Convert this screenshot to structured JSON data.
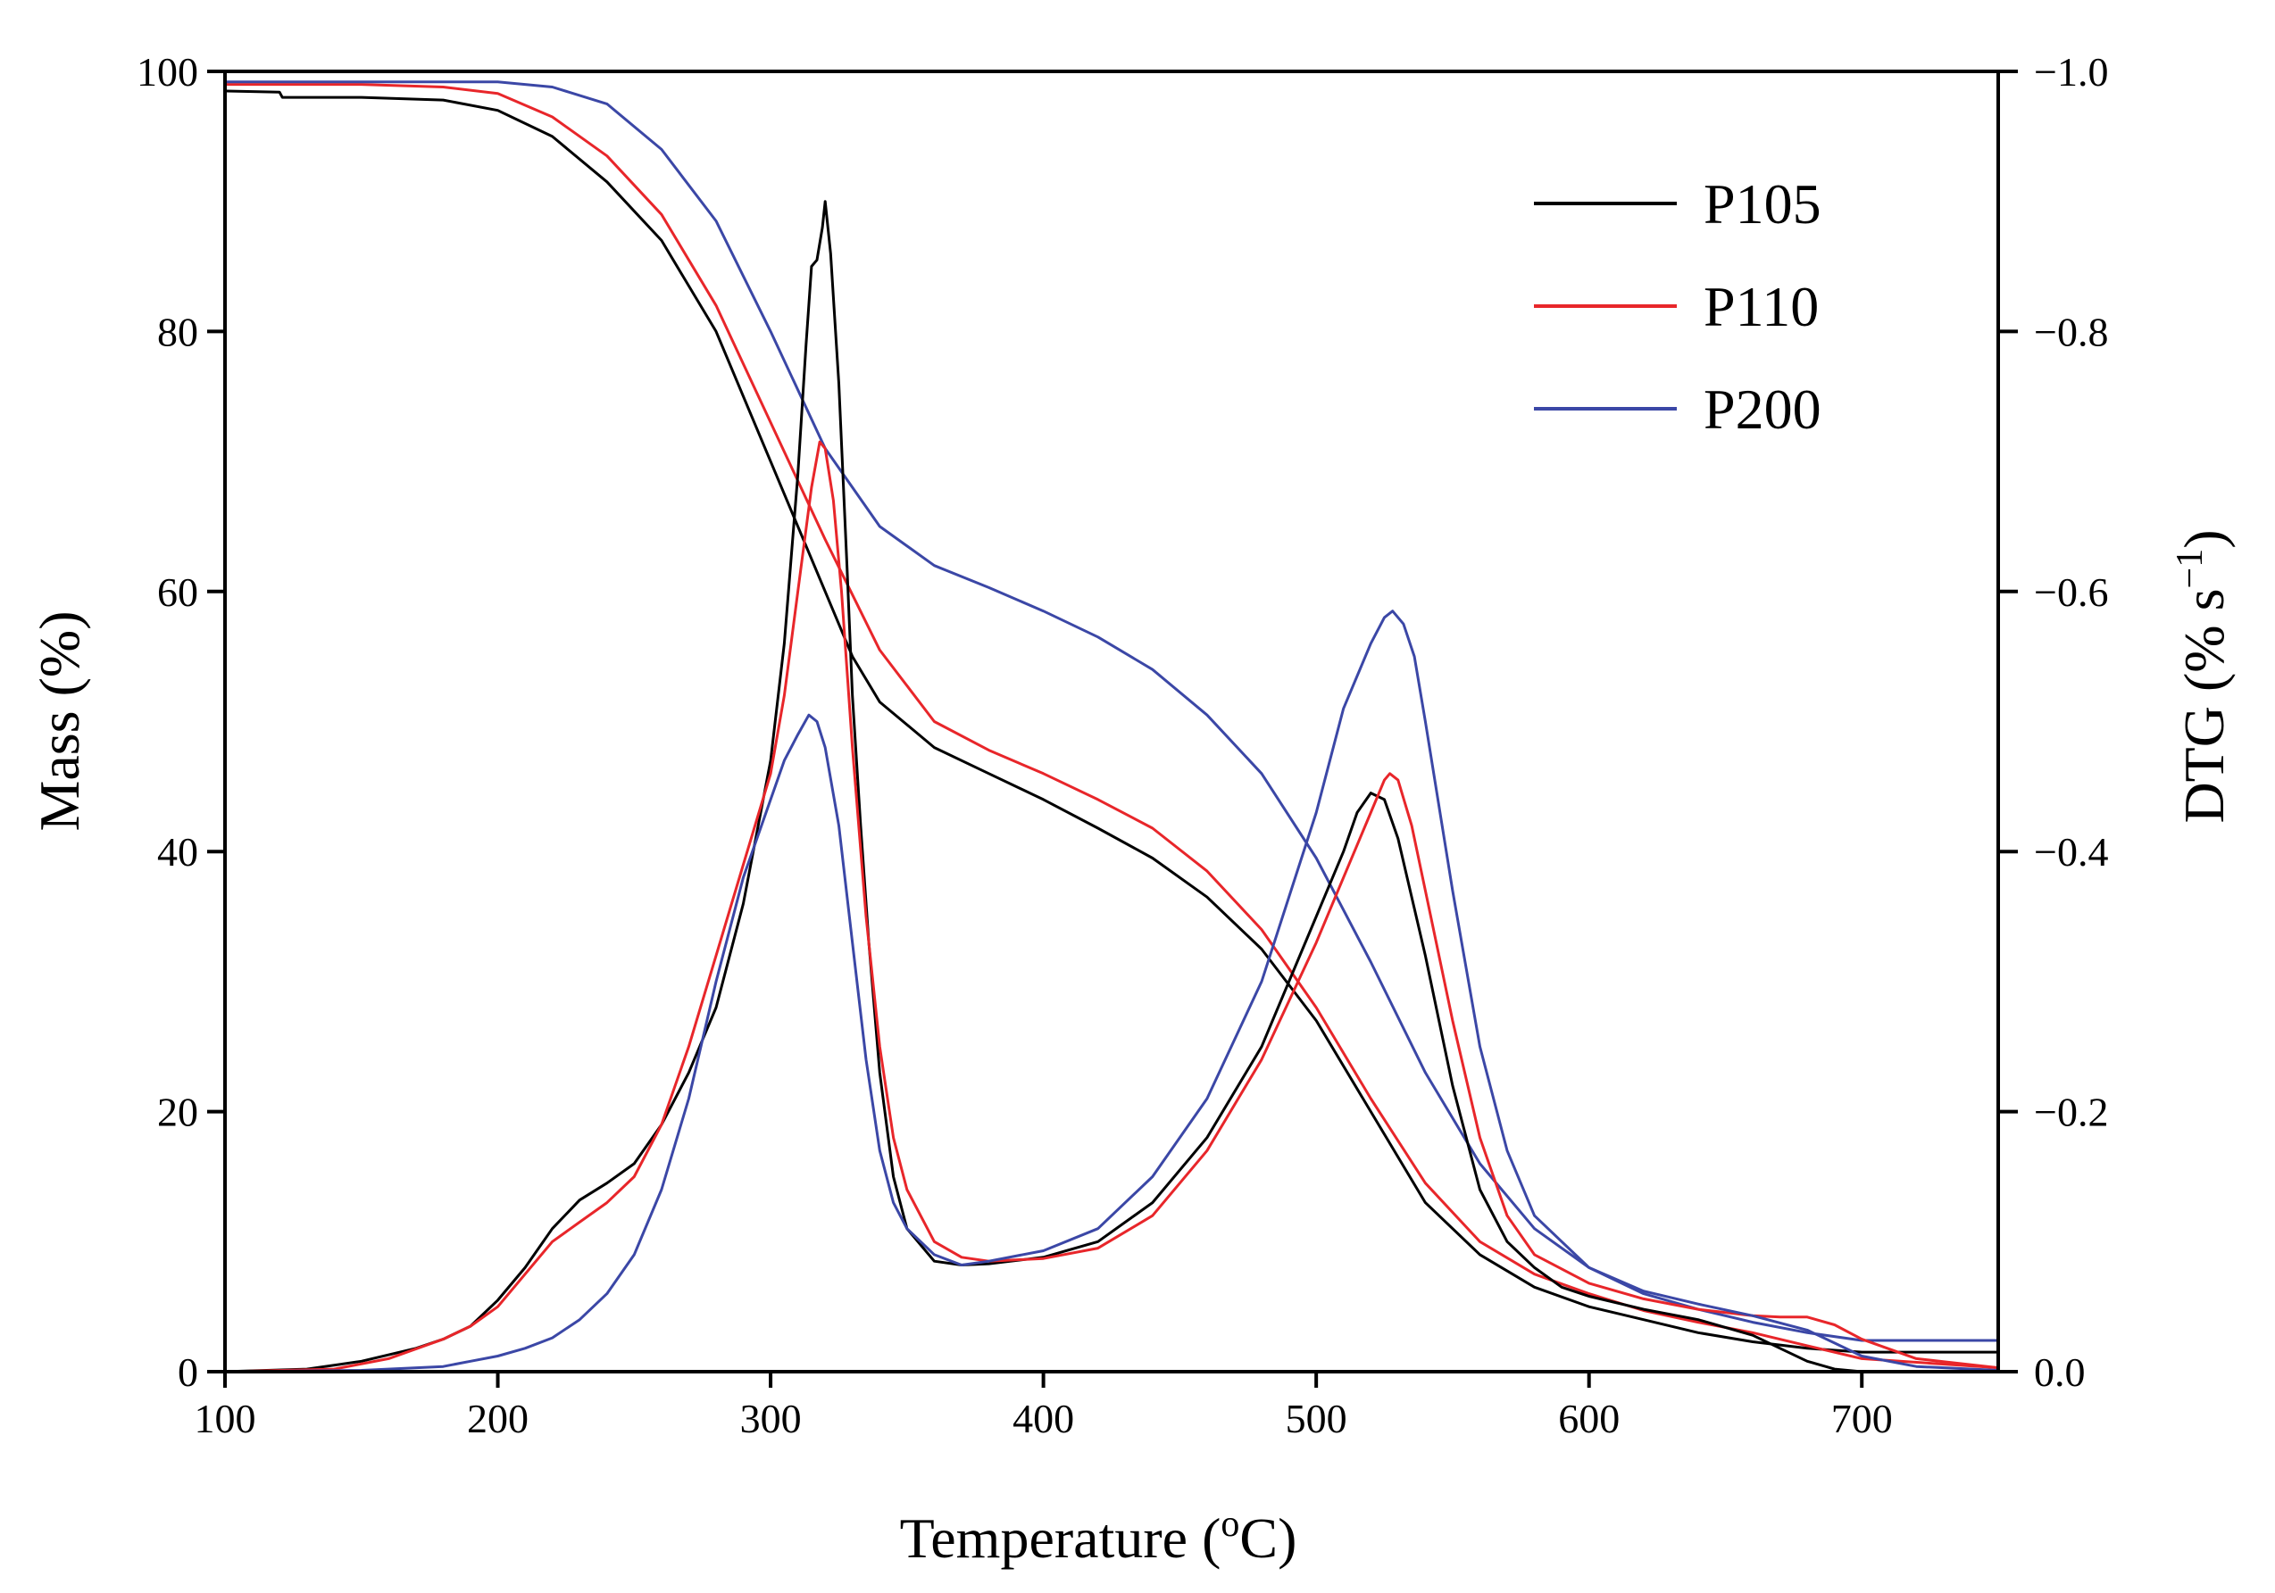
{
  "chart_data": {
    "type": "line",
    "title": "",
    "xlabel": "Temperature (",
    "xlabel_sup": "o",
    "xlabel_end": "C)",
    "ylabel": "Mass (%)",
    "y2label": "DTG (% s",
    "y2label_sup": "−1",
    "y2label_end": ")",
    "xlim": [
      100,
      750
    ],
    "ylim": [
      0,
      100
    ],
    "y2lim": [
      0.0,
      -1.0
    ],
    "xticks": [
      100,
      200,
      300,
      400,
      500,
      600,
      700
    ],
    "xtick_labels": [
      "100",
      "200",
      "300",
      "400",
      "500",
      "600",
      "700"
    ],
    "yticks": [
      0,
      20,
      40,
      60,
      80,
      100
    ],
    "ytick_labels": [
      "0",
      "20",
      "40",
      "60",
      "80",
      "100"
    ],
    "y2ticks": [
      0.0,
      -0.2,
      -0.4,
      -0.6,
      -0.8,
      -1.0
    ],
    "y2tick_labels": [
      "0.0",
      "−0.2",
      "−0.4",
      "−0.6",
      "−0.8",
      "−1.0"
    ],
    "legend_position": "top-right",
    "legend": [
      {
        "label": "P105",
        "color": "#000000"
      },
      {
        "label": "P110",
        "color": "#e8262a"
      },
      {
        "label": "P200",
        "color": "#3b47a6"
      }
    ],
    "series": [
      {
        "name": "P105",
        "kind": "mass",
        "axis": "left",
        "color": "#000000",
        "x": [
          100,
          120,
          121,
          150,
          180,
          200,
          220,
          240,
          260,
          280,
          300,
          320,
          330,
          340,
          360,
          380,
          400,
          420,
          440,
          460,
          480,
          500,
          520,
          540,
          560,
          580,
          600,
          620,
          640,
          660,
          680,
          700,
          750
        ],
        "y": [
          98.5,
          98.4,
          98.0,
          98.0,
          97.8,
          97.0,
          95.0,
          91.5,
          87.0,
          80.0,
          70.0,
          60.0,
          55.0,
          51.5,
          48.0,
          46.0,
          44.0,
          41.8,
          39.5,
          36.5,
          32.5,
          27.0,
          20.0,
          13.0,
          9.0,
          6.5,
          5.0,
          4.0,
          3.0,
          2.3,
          1.8,
          1.5,
          1.5
        ]
      },
      {
        "name": "P110",
        "kind": "mass",
        "axis": "left",
        "color": "#e8262a",
        "x": [
          100,
          150,
          180,
          200,
          220,
          240,
          260,
          280,
          300,
          320,
          340,
          360,
          380,
          400,
          420,
          440,
          460,
          480,
          500,
          520,
          540,
          560,
          580,
          600,
          620,
          640,
          660,
          680,
          700,
          750
        ],
        "y": [
          99.0,
          99.0,
          98.8,
          98.3,
          96.5,
          93.5,
          89.0,
          82.0,
          73.0,
          64.0,
          55.5,
          50.0,
          47.8,
          46.0,
          44.0,
          41.8,
          38.5,
          34.0,
          28.0,
          21.0,
          14.5,
          10.0,
          7.5,
          6.0,
          4.7,
          3.8,
          3.0,
          2.0,
          1.0,
          0.3
        ]
      },
      {
        "name": "P200",
        "kind": "mass",
        "axis": "left",
        "color": "#3b47a6",
        "x": [
          100,
          150,
          200,
          220,
          240,
          260,
          280,
          300,
          320,
          340,
          360,
          380,
          400,
          420,
          440,
          460,
          480,
          500,
          520,
          540,
          560,
          580,
          600,
          620,
          640,
          660,
          680,
          700,
          750
        ],
        "y": [
          99.2,
          99.2,
          99.2,
          98.8,
          97.5,
          94.0,
          88.5,
          80.0,
          71.0,
          65.0,
          62.0,
          60.3,
          58.5,
          56.5,
          54.0,
          50.5,
          46.0,
          39.5,
          31.5,
          23.0,
          16.0,
          11.0,
          8.0,
          6.0,
          4.8,
          3.8,
          3.0,
          2.4,
          2.4
        ]
      },
      {
        "name": "P105",
        "kind": "dtg",
        "axis": "right",
        "color": "#000000",
        "x": [
          100,
          130,
          150,
          170,
          180,
          190,
          200,
          210,
          220,
          230,
          240,
          250,
          260,
          270,
          280,
          290,
          300,
          305,
          310,
          313,
          315,
          317,
          319,
          320,
          322,
          325,
          328,
          330,
          333,
          336,
          340,
          345,
          350,
          360,
          370,
          380,
          400,
          420,
          440,
          460,
          480,
          500,
          510,
          515,
          520,
          525,
          530,
          540,
          550,
          560,
          570,
          580,
          590,
          600,
          620,
          640,
          660,
          670,
          680,
          690,
          700,
          750
        ],
        "y": [
          0.0,
          -0.002,
          -0.008,
          -0.018,
          -0.025,
          -0.035,
          -0.055,
          -0.08,
          -0.11,
          -0.132,
          -0.145,
          -0.16,
          -0.19,
          -0.23,
          -0.28,
          -0.36,
          -0.47,
          -0.56,
          -0.69,
          -0.79,
          -0.85,
          -0.855,
          -0.88,
          -0.9,
          -0.86,
          -0.76,
          -0.62,
          -0.52,
          -0.42,
          -0.33,
          -0.23,
          -0.15,
          -0.11,
          -0.085,
          -0.082,
          -0.083,
          -0.088,
          -0.1,
          -0.13,
          -0.18,
          -0.25,
          -0.35,
          -0.4,
          -0.43,
          -0.445,
          -0.44,
          -0.41,
          -0.32,
          -0.22,
          -0.14,
          -0.1,
          -0.08,
          -0.065,
          -0.058,
          -0.048,
          -0.04,
          -0.028,
          -0.018,
          -0.008,
          -0.002,
          0.0,
          0.0
        ]
      },
      {
        "name": "P110",
        "kind": "dtg",
        "axis": "right",
        "color": "#e8262a",
        "x": [
          100,
          140,
          160,
          180,
          190,
          200,
          210,
          220,
          230,
          240,
          250,
          260,
          270,
          280,
          290,
          300,
          305,
          310,
          315,
          318,
          320,
          323,
          326,
          330,
          335,
          340,
          345,
          350,
          360,
          370,
          380,
          400,
          420,
          440,
          460,
          480,
          500,
          510,
          520,
          525,
          527,
          530,
          535,
          540,
          550,
          560,
          570,
          580,
          600,
          620,
          640,
          660,
          670,
          680,
          690,
          700,
          720,
          750
        ],
        "y": [
          0.0,
          -0.002,
          -0.01,
          -0.025,
          -0.035,
          -0.05,
          -0.075,
          -0.1,
          -0.115,
          -0.13,
          -0.15,
          -0.19,
          -0.25,
          -0.32,
          -0.39,
          -0.46,
          -0.52,
          -0.6,
          -0.68,
          -0.715,
          -0.71,
          -0.67,
          -0.6,
          -0.48,
          -0.35,
          -0.25,
          -0.18,
          -0.14,
          -0.1,
          -0.088,
          -0.085,
          -0.087,
          -0.095,
          -0.12,
          -0.17,
          -0.24,
          -0.33,
          -0.38,
          -0.43,
          -0.455,
          -0.46,
          -0.455,
          -0.42,
          -0.37,
          -0.27,
          -0.18,
          -0.12,
          -0.09,
          -0.068,
          -0.056,
          -0.048,
          -0.043,
          -0.042,
          -0.042,
          -0.036,
          -0.025,
          -0.01,
          -0.003
        ]
      },
      {
        "name": "P200",
        "kind": "dtg",
        "axis": "right",
        "color": "#3b47a6",
        "x": [
          100,
          150,
          180,
          190,
          200,
          210,
          220,
          230,
          240,
          250,
          260,
          270,
          280,
          290,
          300,
          305,
          310,
          314,
          317,
          320,
          325,
          330,
          335,
          340,
          345,
          350,
          360,
          370,
          380,
          400,
          420,
          440,
          460,
          480,
          500,
          510,
          520,
          525,
          528,
          532,
          536,
          540,
          550,
          560,
          570,
          580,
          600,
          620,
          640,
          660,
          680,
          690,
          700,
          720,
          750
        ],
        "y": [
          0.0,
          -0.001,
          -0.004,
          -0.008,
          -0.012,
          -0.018,
          -0.026,
          -0.04,
          -0.06,
          -0.09,
          -0.14,
          -0.21,
          -0.3,
          -0.38,
          -0.44,
          -0.47,
          -0.49,
          -0.505,
          -0.5,
          -0.48,
          -0.42,
          -0.33,
          -0.24,
          -0.17,
          -0.13,
          -0.11,
          -0.09,
          -0.082,
          -0.085,
          -0.093,
          -0.11,
          -0.15,
          -0.21,
          -0.3,
          -0.43,
          -0.51,
          -0.56,
          -0.58,
          -0.585,
          -0.575,
          -0.55,
          -0.5,
          -0.37,
          -0.25,
          -0.17,
          -0.12,
          -0.08,
          -0.062,
          -0.052,
          -0.043,
          -0.032,
          -0.022,
          -0.012,
          -0.004,
          -0.001
        ]
      }
    ]
  }
}
